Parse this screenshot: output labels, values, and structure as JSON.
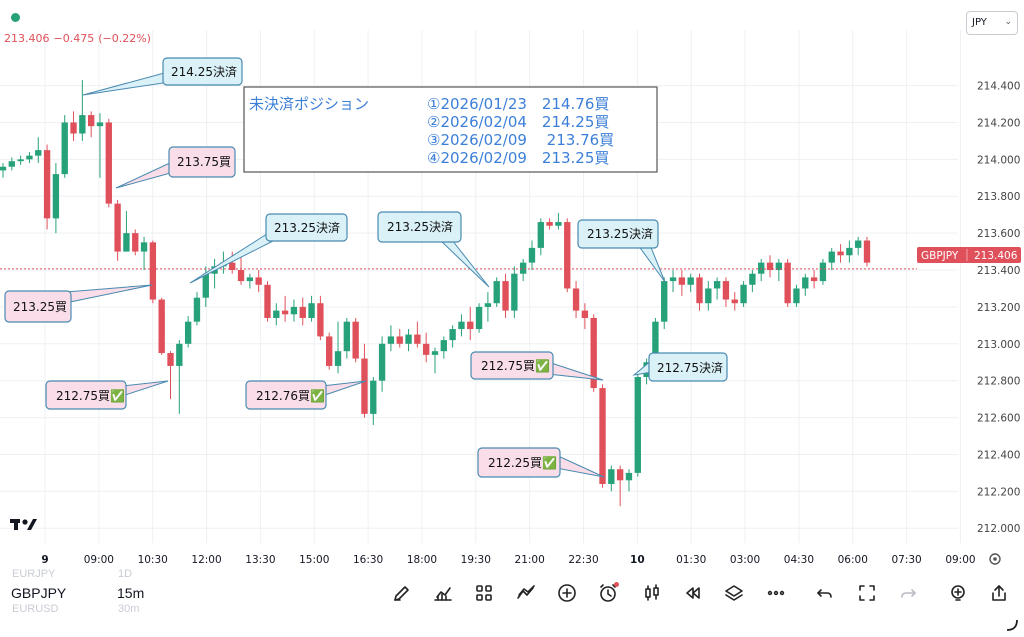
{
  "header": {
    "last_price": "213.406",
    "change": "−0.475",
    "change_pct": "(−0.22%)",
    "currency": "JPY"
  },
  "symbol_panel": {
    "prev_symbol": "EURJPY",
    "prev_interval": "1D",
    "symbol": "GBPJPY",
    "interval": "15m",
    "next_symbol": "EURUSD",
    "next_interval": "30m"
  },
  "toolbar": {
    "icons": [
      "pencil-icon",
      "indicators-icon",
      "layout-grid-icon",
      "strategy-icon",
      "add-icon",
      "alert-clock-icon",
      "candle-type-icon",
      "replay-icon",
      "layers-icon",
      "more-icon",
      "undo-icon",
      "fullscreen-icon",
      "redo-icon",
      "bulb-add-icon",
      "share-icon"
    ]
  },
  "chart_data": {
    "type": "candlestick",
    "symbol_label": "GBPJPY",
    "last_price_label": "213.406",
    "last_price": 213.406,
    "y_ticks": [
      "214.400",
      "214.200",
      "214.000",
      "213.800",
      "213.600",
      "213.400",
      "213.200",
      "213.000",
      "212.800",
      "212.600",
      "212.400",
      "212.200",
      "212.000"
    ],
    "ylim": [
      211.92,
      214.62
    ],
    "x_ticks": [
      "9",
      "09:00",
      "10:30",
      "12:00",
      "13:30",
      "15:00",
      "16:30",
      "18:00",
      "19:30",
      "21:00",
      "22:30",
      "10",
      "01:30",
      "03:00",
      "04:30",
      "06:00",
      "07:30",
      "09:00"
    ],
    "colors": {
      "up": "#26a17a",
      "down": "#e0505a",
      "grid": "#eef0f3",
      "text": "#131722",
      "axis_text": "#444444"
    },
    "candles": [
      [
        213.94,
        213.98,
        213.9,
        213.96
      ],
      [
        213.96,
        214.01,
        213.94,
        213.99
      ],
      [
        213.99,
        214.02,
        213.97,
        214.0
      ],
      [
        214.0,
        214.04,
        213.98,
        214.02
      ],
      [
        214.02,
        214.12,
        213.98,
        214.05
      ],
      [
        214.05,
        214.08,
        213.62,
        213.68
      ],
      [
        213.68,
        213.98,
        213.6,
        213.92
      ],
      [
        213.92,
        214.24,
        213.9,
        214.2
      ],
      [
        214.2,
        214.26,
        214.1,
        214.14
      ],
      [
        214.14,
        214.43,
        214.1,
        214.24
      ],
      [
        214.24,
        214.26,
        214.12,
        214.18
      ],
      [
        214.18,
        214.25,
        213.9,
        214.2
      ],
      [
        214.2,
        214.22,
        213.74,
        213.76
      ],
      [
        213.76,
        213.78,
        213.45,
        213.5
      ],
      [
        213.5,
        213.72,
        213.5,
        213.6
      ],
      [
        213.6,
        213.62,
        213.48,
        213.5
      ],
      [
        213.5,
        213.58,
        213.4,
        213.55
      ],
      [
        213.55,
        213.56,
        213.22,
        213.24
      ],
      [
        213.24,
        213.25,
        212.94,
        212.95
      ],
      [
        212.95,
        212.96,
        212.7,
        212.88
      ],
      [
        212.88,
        213.02,
        212.62,
        213.0
      ],
      [
        213.0,
        213.15,
        212.98,
        213.12
      ],
      [
        213.12,
        213.28,
        213.1,
        213.25
      ],
      [
        213.25,
        213.42,
        213.2,
        213.38
      ],
      [
        213.38,
        213.46,
        213.3,
        213.42
      ],
      [
        213.42,
        213.5,
        213.38,
        213.44
      ],
      [
        213.44,
        213.5,
        213.38,
        213.4
      ],
      [
        213.4,
        213.47,
        213.32,
        213.34
      ],
      [
        213.34,
        213.38,
        213.3,
        213.36
      ],
      [
        213.36,
        213.4,
        213.28,
        213.32
      ],
      [
        213.32,
        213.34,
        213.12,
        213.14
      ],
      [
        213.14,
        213.22,
        213.1,
        213.18
      ],
      [
        213.18,
        213.26,
        213.12,
        213.16
      ],
      [
        213.16,
        213.24,
        213.12,
        213.2
      ],
      [
        213.2,
        213.25,
        213.1,
        213.14
      ],
      [
        213.14,
        213.26,
        213.12,
        213.22
      ],
      [
        213.22,
        213.26,
        213.02,
        213.04
      ],
      [
        213.04,
        213.06,
        212.86,
        212.88
      ],
      [
        212.88,
        213.12,
        212.84,
        212.96
      ],
      [
        212.96,
        213.14,
        212.92,
        213.12
      ],
      [
        213.12,
        213.14,
        212.9,
        212.92
      ],
      [
        212.92,
        213.0,
        212.6,
        212.62
      ],
      [
        212.62,
        212.82,
        212.56,
        212.8
      ],
      [
        212.8,
        213.04,
        212.74,
        213.0
      ],
      [
        213.0,
        213.1,
        212.96,
        213.04
      ],
      [
        213.04,
        213.08,
        212.98,
        213.0
      ],
      [
        213.0,
        213.08,
        212.96,
        213.05
      ],
      [
        213.05,
        213.12,
        212.98,
        213.0
      ],
      [
        213.0,
        213.06,
        212.9,
        212.94
      ],
      [
        212.94,
        212.98,
        212.84,
        212.96
      ],
      [
        212.96,
        213.04,
        212.92,
        213.02
      ],
      [
        213.02,
        213.1,
        212.98,
        213.08
      ],
      [
        213.08,
        213.16,
        213.04,
        213.12
      ],
      [
        213.12,
        213.2,
        213.02,
        213.08
      ],
      [
        213.08,
        213.22,
        213.06,
        213.2
      ],
      [
        213.2,
        213.28,
        213.12,
        213.22
      ],
      [
        213.22,
        213.36,
        213.2,
        213.34
      ],
      [
        213.34,
        213.38,
        213.14,
        213.18
      ],
      [
        213.18,
        213.42,
        213.14,
        213.38
      ],
      [
        213.38,
        213.46,
        213.34,
        213.44
      ],
      [
        213.44,
        213.56,
        213.4,
        213.52
      ],
      [
        213.52,
        213.68,
        213.48,
        213.66
      ],
      [
        213.66,
        213.68,
        213.62,
        213.64
      ],
      [
        213.64,
        213.71,
        213.62,
        213.66
      ],
      [
        213.66,
        213.68,
        213.28,
        213.3
      ],
      [
        213.3,
        213.34,
        213.14,
        213.18
      ],
      [
        213.18,
        213.22,
        213.08,
        213.14
      ],
      [
        213.14,
        213.16,
        212.74,
        212.76
      ],
      [
        212.76,
        212.78,
        212.22,
        212.24
      ],
      [
        212.24,
        212.34,
        212.2,
        212.32
      ],
      [
        212.32,
        212.34,
        212.12,
        212.26
      ],
      [
        212.26,
        212.32,
        212.2,
        212.3
      ],
      [
        212.3,
        212.84,
        212.28,
        212.82
      ],
      [
        212.82,
        212.92,
        212.78,
        212.9
      ],
      [
        212.9,
        213.14,
        212.88,
        213.12
      ],
      [
        213.12,
        213.36,
        213.08,
        213.34
      ],
      [
        213.34,
        213.4,
        213.28,
        213.36
      ],
      [
        213.36,
        213.4,
        213.26,
        213.32
      ],
      [
        213.32,
        213.38,
        213.28,
        213.36
      ],
      [
        213.36,
        213.38,
        213.18,
        213.22
      ],
      [
        213.22,
        213.34,
        213.18,
        213.3
      ],
      [
        213.3,
        213.36,
        213.24,
        213.34
      ],
      [
        213.34,
        213.36,
        213.2,
        213.24
      ],
      [
        213.24,
        213.28,
        213.18,
        213.22
      ],
      [
        213.22,
        213.34,
        213.2,
        213.32
      ],
      [
        213.32,
        213.4,
        213.28,
        213.38
      ],
      [
        213.38,
        213.46,
        213.34,
        213.44
      ],
      [
        213.44,
        213.48,
        213.36,
        213.4
      ],
      [
        213.4,
        213.46,
        213.34,
        213.44
      ],
      [
        213.44,
        213.46,
        213.2,
        213.22
      ],
      [
        213.22,
        213.32,
        213.2,
        213.3
      ],
      [
        213.3,
        213.38,
        213.26,
        213.36
      ],
      [
        213.36,
        213.4,
        213.3,
        213.34
      ],
      [
        213.34,
        213.46,
        213.32,
        213.44
      ],
      [
        213.44,
        213.52,
        213.4,
        213.5
      ],
      [
        213.5,
        213.54,
        213.44,
        213.48
      ],
      [
        213.48,
        213.56,
        213.44,
        213.52
      ],
      [
        213.52,
        213.58,
        213.48,
        213.56
      ],
      [
        213.56,
        213.58,
        213.42,
        213.44
      ]
    ]
  },
  "position_box": {
    "title": "未決済ポジション",
    "lines": [
      "①2026/01/23　214.76買",
      "②2026/02/04　214.25買",
      "③2026/02/09　 213.76買",
      "④2026/02/09　213.25買"
    ]
  },
  "annotations": {
    "a1": "214.25決済",
    "a2": "213.75買",
    "a3": "213.25決済",
    "a4": "213.25買",
    "a5": "212.75買✅",
    "a6": "212.76買✅",
    "a7": "213.25決済",
    "a8": "212.75買✅",
    "a9": "212.25買✅",
    "a10": "213.25決済",
    "a11": "212.75決済"
  }
}
